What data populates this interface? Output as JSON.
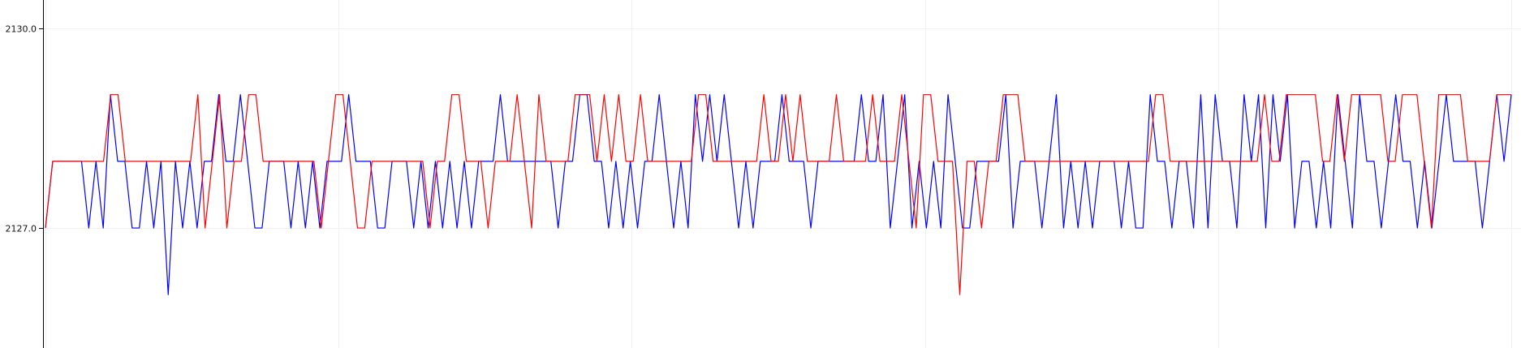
{
  "chart_data": {
    "type": "line",
    "title": "",
    "xlabel": "",
    "ylabel": "",
    "grid": true,
    "x_tick_labels_visible": false,
    "ylim": [
      2125.2,
      2130.42
    ],
    "xlim": [
      0,
      200
    ],
    "yticks": [
      {
        "value": 2127.0,
        "label": "2127.0"
      },
      {
        "value": 2130.0,
        "label": "2130.0"
      }
    ],
    "series": [
      {
        "color": "#0000ff",
        "values": [
          2127.0,
          2128.0,
          2128.0,
          2128.0,
          2128.0,
          2128.0,
          2127.0,
          2128.0,
          2127.0,
          2129.0,
          2128.0,
          2128.0,
          2127.0,
          2127.0,
          2128.0,
          2127.0,
          2128.0,
          2126.0,
          2128.0,
          2127.0,
          2128.0,
          2127.0,
          2128.0,
          2128.0,
          2129.0,
          2128.0,
          2128.0,
          2129.0,
          2128.0,
          2127.0,
          2127.0,
          2128.0,
          2128.0,
          2128.0,
          2127.0,
          2128.0,
          2127.0,
          2128.0,
          2127.0,
          2128.0,
          2128.0,
          2128.0,
          2129.0,
          2128.0,
          2128.0,
          2128.0,
          2127.0,
          2127.0,
          2128.0,
          2128.0,
          2128.0,
          2127.0,
          2128.0,
          2127.0,
          2128.0,
          2127.0,
          2128.0,
          2127.0,
          2128.0,
          2127.0,
          2128.0,
          2128.0,
          2128.0,
          2129.0,
          2128.0,
          2128.0,
          2128.0,
          2128.0,
          2128.0,
          2128.0,
          2128.0,
          2127.0,
          2128.0,
          2128.0,
          2129.0,
          2129.0,
          2128.0,
          2128.0,
          2127.0,
          2128.0,
          2127.0,
          2128.0,
          2127.0,
          2128.0,
          2128.0,
          2129.0,
          2128.0,
          2127.0,
          2128.0,
          2127.0,
          2129.0,
          2128.0,
          2129.0,
          2128.0,
          2129.0,
          2128.0,
          2127.0,
          2128.0,
          2127.0,
          2128.0,
          2128.0,
          2128.0,
          2129.0,
          2128.0,
          2128.0,
          2128.0,
          2127.0,
          2128.0,
          2128.0,
          2128.0,
          2128.0,
          2128.0,
          2128.0,
          2129.0,
          2128.0,
          2128.0,
          2129.0,
          2127.0,
          2128.0,
          2129.0,
          2127.0,
          2128.0,
          2127.0,
          2128.0,
          2127.0,
          2129.0,
          2128.0,
          2127.0,
          2127.0,
          2128.0,
          2128.0,
          2128.0,
          2128.0,
          2129.0,
          2127.0,
          2128.0,
          2128.0,
          2128.0,
          2127.0,
          2128.0,
          2129.0,
          2127.0,
          2128.0,
          2127.0,
          2128.0,
          2127.0,
          2128.0,
          2128.0,
          2128.0,
          2127.0,
          2128.0,
          2127.0,
          2127.0,
          2129.0,
          2128.0,
          2128.0,
          2127.0,
          2128.0,
          2128.0,
          2127.0,
          2129.0,
          2127.0,
          2129.0,
          2128.0,
          2128.0,
          2127.0,
          2129.0,
          2128.0,
          2129.0,
          2127.0,
          2129.0,
          2128.0,
          2129.0,
          2127.0,
          2128.0,
          2128.0,
          2127.0,
          2128.0,
          2127.0,
          2129.0,
          2128.0,
          2127.0,
          2129.0,
          2128.0,
          2128.0,
          2127.0,
          2128.0,
          2129.0,
          2128.0,
          2128.0,
          2127.0,
          2128.0,
          2127.0,
          2128.0,
          2129.0,
          2128.0,
          2128.0,
          2128.0,
          2128.0,
          2127.0,
          2128.0,
          2129.0,
          2128.0,
          2129.0
        ]
      },
      {
        "color": "#ff0000",
        "values": [
          2127.0,
          2128.0,
          2128.0,
          2128.0,
          2128.0,
          2128.0,
          2128.0,
          2128.0,
          2128.0,
          2129.0,
          2129.0,
          2128.0,
          2128.0,
          2128.0,
          2128.0,
          2128.0,
          2128.0,
          2128.0,
          2128.0,
          2128.0,
          2128.0,
          2129.0,
          2127.0,
          2128.0,
          2129.0,
          2127.0,
          2128.0,
          2128.0,
          2129.0,
          2129.0,
          2128.0,
          2128.0,
          2128.0,
          2128.0,
          2128.0,
          2128.0,
          2128.0,
          2128.0,
          2127.0,
          2128.0,
          2129.0,
          2129.0,
          2128.0,
          2127.0,
          2127.0,
          2128.0,
          2128.0,
          2128.0,
          2128.0,
          2128.0,
          2128.0,
          2128.0,
          2128.0,
          2127.0,
          2128.0,
          2128.0,
          2129.0,
          2129.0,
          2128.0,
          2128.0,
          2128.0,
          2127.0,
          2128.0,
          2128.0,
          2128.0,
          2129.0,
          2128.0,
          2127.0,
          2129.0,
          2128.0,
          2128.0,
          2128.0,
          2128.0,
          2129.0,
          2129.0,
          2129.0,
          2128.0,
          2129.0,
          2128.0,
          2129.0,
          2128.0,
          2128.0,
          2129.0,
          2128.0,
          2128.0,
          2128.0,
          2128.0,
          2128.0,
          2128.0,
          2128.0,
          2129.0,
          2129.0,
          2128.0,
          2128.0,
          2128.0,
          2128.0,
          2128.0,
          2128.0,
          2128.0,
          2129.0,
          2128.0,
          2128.0,
          2129.0,
          2128.0,
          2129.0,
          2128.0,
          2128.0,
          2128.0,
          2128.0,
          2129.0,
          2128.0,
          2128.0,
          2128.0,
          2128.0,
          2129.0,
          2128.0,
          2128.0,
          2128.0,
          2129.0,
          2128.0,
          2127.0,
          2129.0,
          2129.0,
          2128.0,
          2128.0,
          2128.0,
          2126.0,
          2128.0,
          2128.0,
          2127.0,
          2128.0,
          2128.0,
          2129.0,
          2129.0,
          2129.0,
          2128.0,
          2128.0,
          2128.0,
          2128.0,
          2128.0,
          2128.0,
          2128.0,
          2128.0,
          2128.0,
          2128.0,
          2128.0,
          2128.0,
          2128.0,
          2128.0,
          2128.0,
          2128.0,
          2128.0,
          2128.0,
          2129.0,
          2129.0,
          2128.0,
          2128.0,
          2128.0,
          2128.0,
          2128.0,
          2128.0,
          2128.0,
          2128.0,
          2128.0,
          2128.0,
          2128.0,
          2128.0,
          2128.0,
          2129.0,
          2128.0,
          2128.0,
          2129.0,
          2129.0,
          2129.0,
          2129.0,
          2129.0,
          2128.0,
          2128.0,
          2129.0,
          2128.0,
          2129.0,
          2129.0,
          2129.0,
          2129.0,
          2129.0,
          2128.0,
          2128.0,
          2129.0,
          2129.0,
          2129.0,
          2128.0,
          2127.0,
          2129.0,
          2129.0,
          2129.0,
          2129.0,
          2128.0,
          2128.0,
          2128.0,
          2128.0,
          2129.0,
          2129.0,
          2129.0
        ]
      }
    ]
  }
}
